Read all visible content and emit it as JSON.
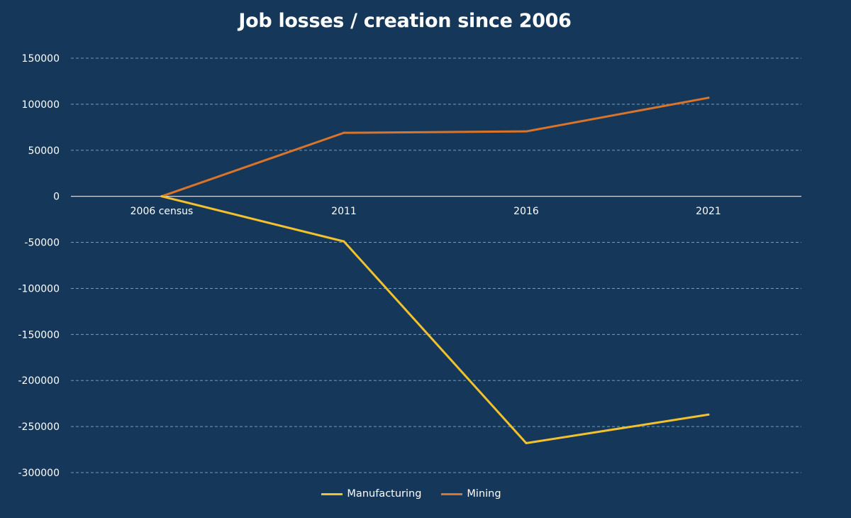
{
  "chart_data": {
    "type": "line",
    "title": "Job losses / creation since 2006",
    "xlabel": "",
    "ylabel": "",
    "categories": [
      "2006 census",
      "2011",
      "2016",
      "2021"
    ],
    "ylim": [
      -300000,
      150000
    ],
    "yticks": [
      150000,
      100000,
      50000,
      0,
      -50000,
      -100000,
      -150000,
      -200000,
      -250000,
      -300000
    ],
    "grid": true,
    "legend_position": "bottom",
    "series": [
      {
        "name": "Manufacturing",
        "color": "#f2c12e",
        "values": [
          0,
          -49000,
          -268000,
          -237000
        ]
      },
      {
        "name": "Mining",
        "color": "#d9742a",
        "values": [
          0,
          69000,
          70500,
          107000
        ]
      }
    ]
  }
}
